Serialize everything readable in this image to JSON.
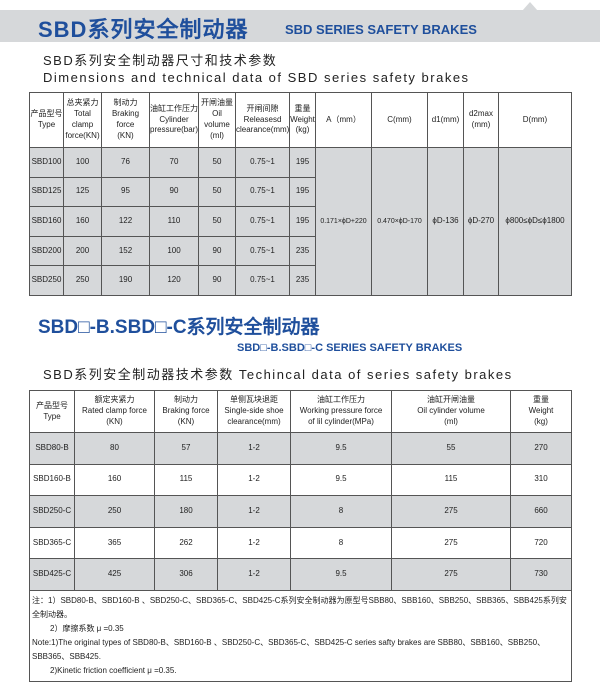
{
  "section1": {
    "title_cn": "SBD系列安全制动器",
    "title_en": "SBD SERIES SAFETY BRAKES",
    "subtitle_cn": "SBD系列安全制动器尺寸和技术参数",
    "subtitle_en": "Dimensions and technical data of SBD series safety brakes",
    "headers": [
      [
        "产品型号",
        "Type"
      ],
      [
        "总夹紧力",
        "Total clamp",
        "force(KN)"
      ],
      [
        "制动力",
        "Braking force",
        "(KN)"
      ],
      [
        "油缸工作压力",
        "Cylinder",
        "pressure(bar)"
      ],
      [
        "开闸油量",
        "Oil volume",
        "(ml)"
      ],
      [
        "开闸间隙",
        "Releasesd",
        "clearance(mm)"
      ],
      [
        "重量",
        "Weight",
        "(kg)"
      ],
      [
        "A（mm）"
      ],
      [
        "C(mm)"
      ],
      [
        "d1(mm)"
      ],
      [
        "d2max",
        "(mm)"
      ],
      [
        "D(mm)"
      ]
    ],
    "rows": [
      [
        "SBD100",
        "100",
        "76",
        "70",
        "50",
        "0.75~1",
        "195"
      ],
      [
        "SBD125",
        "125",
        "95",
        "90",
        "50",
        "0.75~1",
        "195"
      ],
      [
        "SBD160",
        "160",
        "122",
        "110",
        "50",
        "0.75~1",
        "195"
      ],
      [
        "SBD200",
        "200",
        "152",
        "100",
        "90",
        "0.75~1",
        "235"
      ],
      [
        "SBD250",
        "250",
        "190",
        "120",
        "90",
        "0.75~1",
        "235"
      ]
    ],
    "shared": [
      "0.171×ϕD+220",
      "0.470×ϕD-170",
      "ϕD-136",
      "ϕD-270",
      "ϕ800≤ϕD≤ϕ1800"
    ]
  },
  "section2": {
    "title": "SBD□-B.SBD□-C系列安全制动器",
    "title_en": "SBD□-B.SBD□-C SERIES SAFETY BRAKES",
    "subtitle": "SBD系列安全制动器技术参数   Techincal data of series safety brakes",
    "headers": [
      [
        "产品型号",
        "Type"
      ],
      [
        "额定夹紧力",
        "Rated clamp force",
        "(KN)"
      ],
      [
        "制动力",
        "Braking force",
        "(KN)"
      ],
      [
        "单侧瓦块退距",
        "Single-side shoe",
        "clearance(mm)"
      ],
      [
        "油缸工作压力",
        "Working pressure force",
        "of lil cylinder(MPa)"
      ],
      [
        "油缸开闸油量",
        "Oil cylinder volume",
        "(ml)"
      ],
      [
        "重量",
        "Weight",
        "(kg)"
      ]
    ],
    "rows": [
      [
        "SBD80-B",
        "80",
        "57",
        "1-2",
        "9.5",
        "55",
        "270"
      ],
      [
        "SBD160-B",
        "160",
        "115",
        "1-2",
        "9.5",
        "115",
        "310"
      ],
      [
        "SBD250-C",
        "250",
        "180",
        "1-2",
        "8",
        "275",
        "660"
      ],
      [
        "SBD365-C",
        "365",
        "262",
        "1-2",
        "8",
        "275",
        "720"
      ],
      [
        "SBD425-C",
        "425",
        "306",
        "1-2",
        "9.5",
        "275",
        "730"
      ]
    ],
    "notes": [
      "注：1）SBD80-B、SBD160-B 、SBD250-C、SBD365-C、SBD425-C系列安全制动器为原型号SBB80、SBB160、SBB250、SBB365、SBB425系列安全制动器。",
      "2）摩擦系数 μ =0.35",
      "Note:1)The original types of SBD80-B、SBD160-B 、SBD250-C、SBD365-C、SBD425-C series safty brakes are SBB80、SBB160、SBB250、SBB365、SBB425.",
      "2)Kinetic friction coefficient  μ =0.35."
    ]
  },
  "colors": {
    "title_blue": "#1f4f9c",
    "band_gray": "#d6d8da"
  }
}
